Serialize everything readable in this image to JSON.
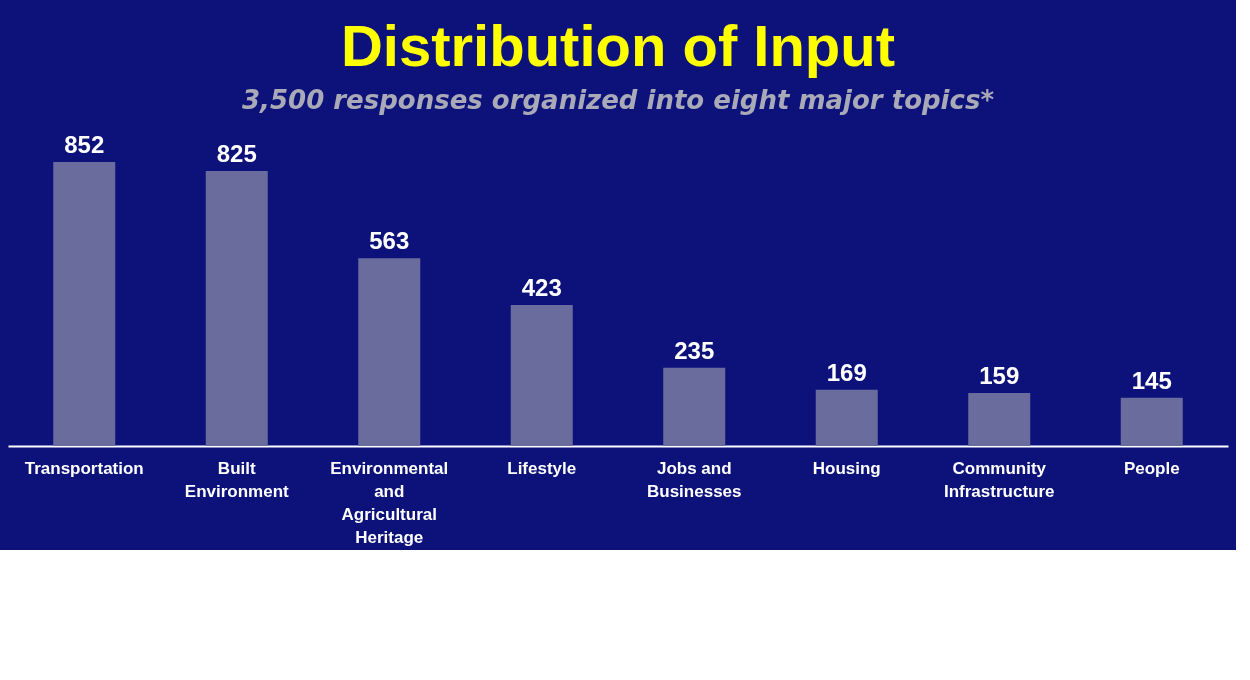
{
  "chart_data": {
    "type": "bar",
    "title": "Distribution of Input",
    "subtitle": "3,500 responses organized into eight major topics*",
    "categories": [
      "Transportation",
      "Built Environment",
      "Environmental and Agricultural Heritage",
      "Lifestyle",
      "Jobs and Businesses",
      "Housing",
      "Community Infrastructure",
      "People"
    ],
    "values": [
      852,
      825,
      563,
      423,
      235,
      169,
      159,
      145
    ],
    "color": "#6a6c9e",
    "data_labels": true,
    "grid": false
  }
}
